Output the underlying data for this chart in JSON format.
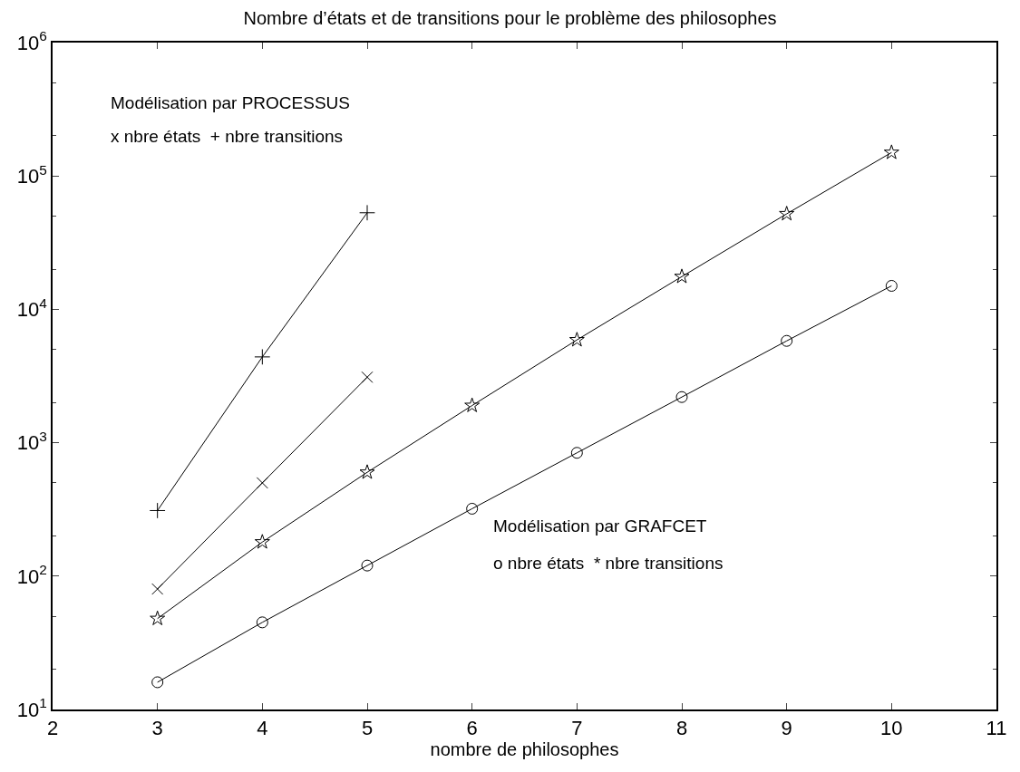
{
  "chart_data": {
    "type": "line",
    "title": "Nombre d’états et de transitions pour le problème des philosophes",
    "xlabel": "nombre de philosophes",
    "annotations": [
      "Modélisation par PROCESSUS",
      "x nbre états  + nbre transitions",
      "Modélisation par GRAFCET",
      "o nbre états  * nbre transitions"
    ],
    "series": [
      {
        "x": [
          3,
          4,
          5
        ],
        "values": [
          310,
          4400,
          53000
        ],
        "color": "#000000",
        "marker": "cross"
      },
      {
        "x": [
          3,
          4,
          5
        ],
        "values": [
          80,
          500,
          3100
        ],
        "color": "#000000",
        "marker": "x"
      },
      {
        "x": [
          3,
          4,
          5,
          6,
          7,
          8,
          9,
          10
        ],
        "values": [
          48,
          180,
          600,
          1900,
          5900,
          17600,
          52000,
          150000
        ],
        "color": "#000000",
        "marker": "star"
      },
      {
        "x": [
          3,
          4,
          5,
          6,
          7,
          8,
          9,
          10
        ],
        "values": [
          16,
          45,
          120,
          320,
          840,
          2200,
          5800,
          15000
        ],
        "color": "#000000",
        "marker": "circle"
      }
    ],
    "log": "y",
    "xlim": [
      2,
      11
    ],
    "xticks": [
      2,
      3,
      4,
      5,
      6,
      7,
      8,
      9,
      10,
      11
    ],
    "ylim": [
      10,
      1000000
    ],
    "yticks": [
      {
        "value": 10,
        "label": "10$^{1}$"
      },
      {
        "value": 100,
        "label": "10$^{2}$"
      },
      {
        "value": 1000,
        "label": "10$^{3}$"
      },
      {
        "value": 10000,
        "label": "10$^{4}$"
      },
      {
        "value": 100000,
        "label": "10$^{5}$"
      },
      {
        "value": 1000000,
        "label": "10$^{6}$"
      }
    ],
    "line_style": "solid"
  }
}
